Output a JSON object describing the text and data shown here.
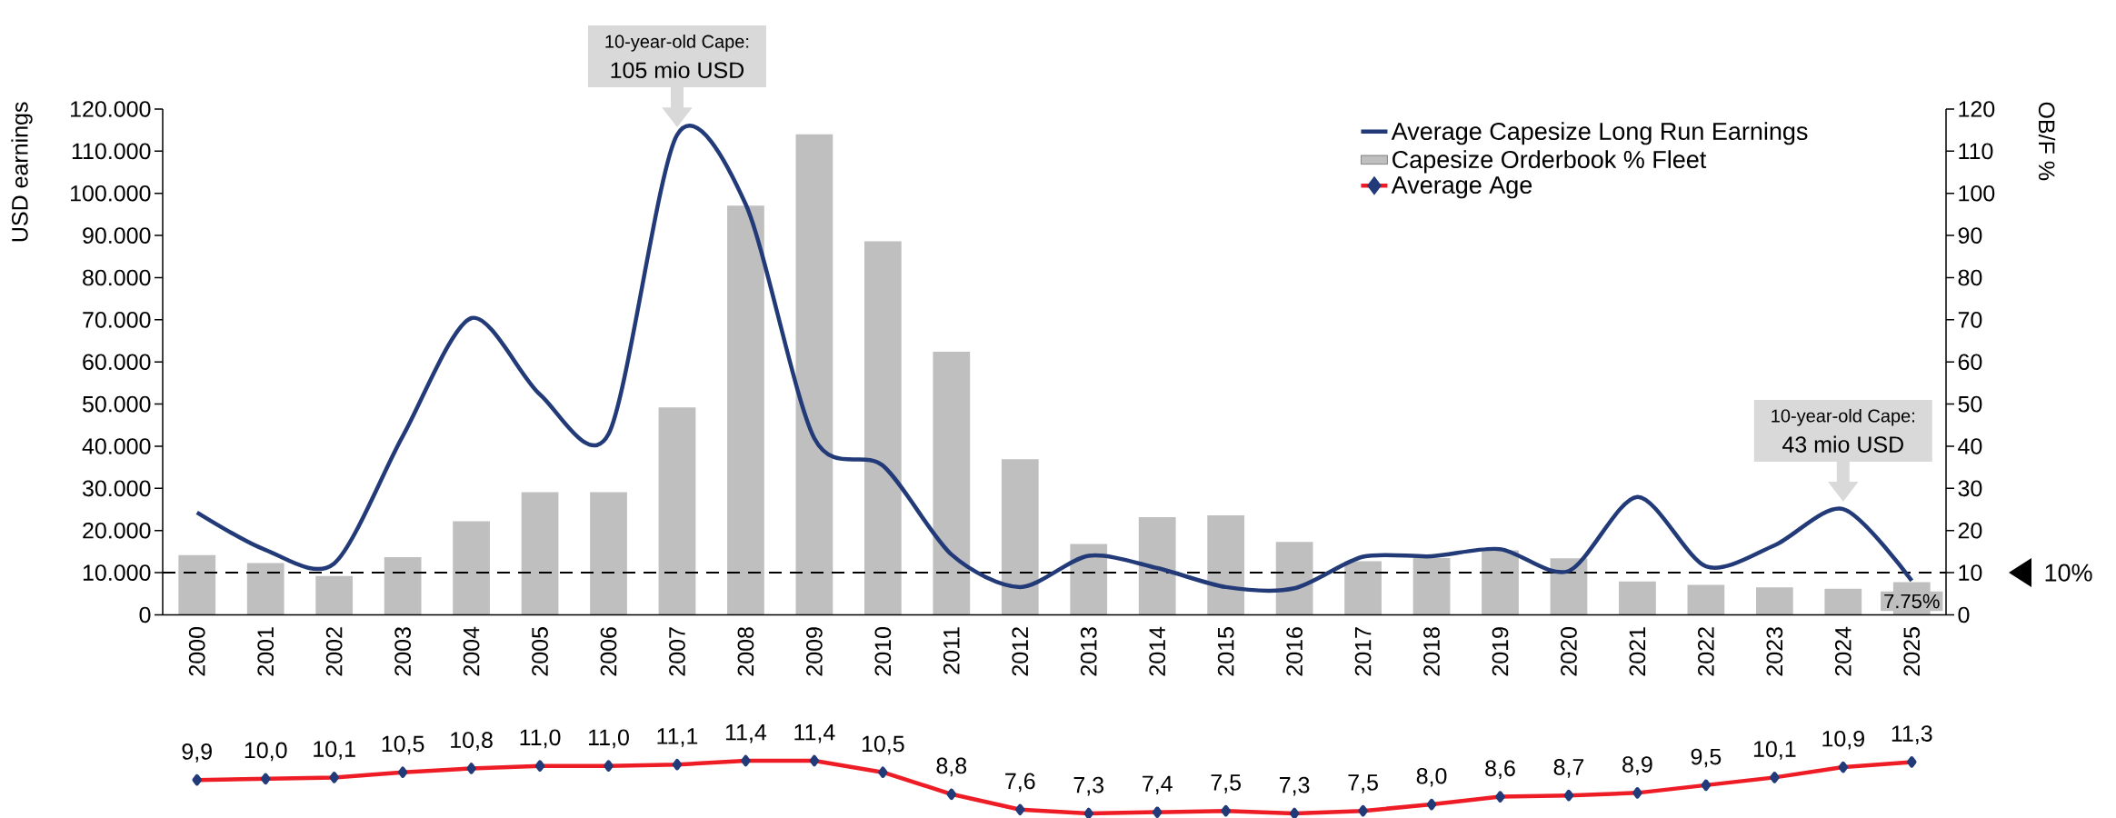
{
  "chart_data": [
    {
      "type": "bar",
      "categories": [
        "2000",
        "2001",
        "2002",
        "2003",
        "2004",
        "2005",
        "2006",
        "2007",
        "2008",
        "2009",
        "2010",
        "2011",
        "2012",
        "2013",
        "2014",
        "2015",
        "2016",
        "2017",
        "2018",
        "2019",
        "2020",
        "2021",
        "2022",
        "2023",
        "2024",
        "2025"
      ],
      "ylabel": "USD earnings",
      "y2label": "OB/F %",
      "ylim": [
        0,
        120000
      ],
      "yticks": [
        {
          "value": 0,
          "label": "0"
        },
        {
          "value": 10000,
          "label": "10.000"
        },
        {
          "value": 20000,
          "label": "20.000"
        },
        {
          "value": 30000,
          "label": "30.000"
        },
        {
          "value": 40000,
          "label": "40.000"
        },
        {
          "value": 50000,
          "label": "50.000"
        },
        {
          "value": 60000,
          "label": "60.000"
        },
        {
          "value": 70000,
          "label": "70.000"
        },
        {
          "value": 80000,
          "label": "80.000"
        },
        {
          "value": 90000,
          "label": "90.000"
        },
        {
          "value": 100000,
          "label": "100.000"
        },
        {
          "value": 110000,
          "label": "110.000"
        },
        {
          "value": 120000,
          "label": "120.000"
        }
      ],
      "y2lim": [
        0,
        120
      ],
      "y2ticks": [
        0,
        10,
        20,
        30,
        40,
        50,
        60,
        70,
        80,
        90,
        100,
        110,
        120
      ],
      "legend": "top right",
      "series": [
        {
          "name": "Average Capesize Long Run Earnings",
          "type": "line",
          "color": "#223a78",
          "values": [
            24300,
            15400,
            12200,
            42400,
            70400,
            52300,
            42900,
            113900,
            97400,
            41900,
            35400,
            14300,
            6600,
            14000,
            11100,
            6600,
            6300,
            13800,
            13900,
            15600,
            10400,
            28000,
            11500,
            16500,
            25100,
            8100
          ]
        },
        {
          "name": "Capesize Orderbook % Fleet",
          "type": "bar",
          "axis": "y2",
          "color": "#bfbfbf",
          "values": [
            14.2,
            12.3,
            9.2,
            13.7,
            22.2,
            29.1,
            29.1,
            49.2,
            97.1,
            114,
            88.6,
            62.4,
            36.9,
            16.8,
            23.2,
            23.6,
            17.3,
            12.7,
            13.5,
            15.3,
            13.4,
            7.9,
            7.1,
            6.5,
            6.2,
            7.75
          ],
          "value_labels": [
            null,
            null,
            null,
            null,
            null,
            null,
            null,
            null,
            null,
            null,
            null,
            null,
            null,
            null,
            null,
            null,
            null,
            null,
            null,
            null,
            null,
            null,
            null,
            null,
            null,
            "7.75%"
          ]
        }
      ],
      "ref_lines": [
        {
          "axis": "y2",
          "value": 10,
          "line_style": "dashed",
          "color": "#000000"
        }
      ],
      "annotations": [
        "10-year-old Cape:",
        {
          "text": "105 mio USD",
          "x": "2007",
          "y": 113900
        },
        "10-year-old Cape:",
        {
          "text": "43 mio USD",
          "x": "2024",
          "y": 25100
        },
        "10%"
      ]
    },
    {
      "type": "line",
      "categories": [
        "2000",
        "2001",
        "2002",
        "2003",
        "2004",
        "2005",
        "2006",
        "2007",
        "2008",
        "2009",
        "2010",
        "2011",
        "2012",
        "2013",
        "2014",
        "2015",
        "2016",
        "2017",
        "2018",
        "2019",
        "2020",
        "2021",
        "2022",
        "2023",
        "2024",
        "2025"
      ],
      "tick_labels": false,
      "legend": "top right",
      "series": [
        {
          "name": "Average Age",
          "color": "#ee1c25",
          "marker": "diamond",
          "values": [
            9.9,
            10.0,
            10.1,
            10.5,
            10.8,
            11.0,
            11.0,
            11.1,
            11.4,
            11.4,
            10.5,
            8.8,
            7.6,
            7.3,
            7.4,
            7.5,
            7.3,
            7.5,
            8.0,
            8.6,
            8.7,
            8.9,
            9.5,
            10.1,
            10.9,
            11.3
          ],
          "value_labels": [
            "9,9",
            "10,0",
            "10,1",
            "10,5",
            "10,8",
            "11,0",
            "11,0",
            "11,1",
            "11,4",
            "11,4",
            "10,5",
            "8,8",
            "7,6",
            "7,3",
            "7,4",
            "7,5",
            "7,3",
            "7,5",
            "8,0",
            "8,6",
            "8,7",
            "8,9",
            "9,5",
            "10,1",
            "10,9",
            "11,3"
          ]
        }
      ]
    }
  ]
}
